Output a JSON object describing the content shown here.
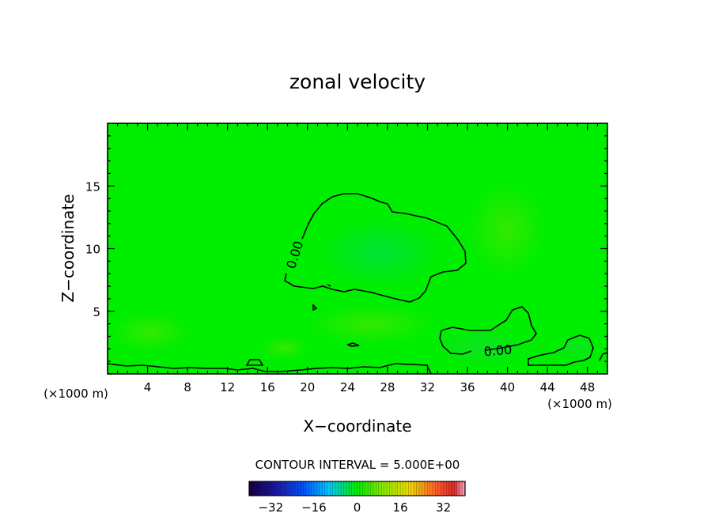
{
  "chart_data": {
    "type": "contour",
    "title": "zonal velocity",
    "xlabel": "X−coordinate",
    "ylabel": "Z−coordinate",
    "x_unit_label_left": "(×1000 m)",
    "x_unit_label_right": "(×1000 m)",
    "xlim": [
      0,
      50
    ],
    "ylim": [
      0,
      20
    ],
    "x_ticks": [
      4,
      8,
      12,
      16,
      20,
      24,
      28,
      32,
      36,
      40,
      44,
      48
    ],
    "y_ticks": [
      5,
      10,
      15
    ],
    "contour_labels": [
      "0.00",
      "0.00"
    ],
    "contour_interval_text": "CONTOUR INTERVAL = 5.000E+00",
    "colorbar": {
      "min": -40,
      "max": 40,
      "tick_values": [
        -32,
        -16,
        0,
        16,
        32
      ],
      "tick_labels": [
        "−32",
        "−16",
        "0",
        "16",
        "32"
      ]
    },
    "colors": {
      "field": "#00ee00",
      "contour_line": "#000000"
    }
  }
}
